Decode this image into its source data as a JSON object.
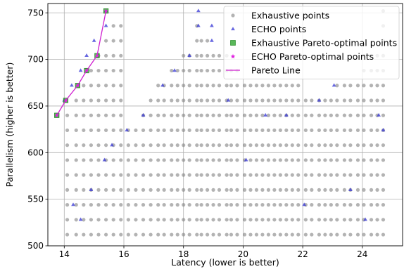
{
  "chart_data": {
    "type": "scatter",
    "xlabel": "Latency (lower is better)",
    "ylabel": "Parallelism (higher is better)",
    "xlim": [
      13.45,
      25.35
    ],
    "ylim": [
      500,
      760
    ],
    "x_ticks": [
      14,
      16,
      18,
      20,
      22,
      24
    ],
    "y_ticks": [
      500,
      550,
      600,
      650,
      700,
      750
    ],
    "grid": true,
    "legend_position": "top-right",
    "parallelism_levels": [
      512,
      528,
      544,
      560,
      576,
      592,
      608,
      624,
      640,
      656,
      672,
      688,
      704,
      720,
      736,
      752
    ],
    "exhaustive_x_columns": [
      14.1,
      14.4,
      14.65,
      14.9,
      15.15,
      15.4,
      15.65,
      15.9,
      16.15,
      16.4,
      16.65,
      16.9,
      17.15,
      17.35,
      17.6,
      17.8,
      18.0,
      18.2,
      18.45,
      18.6,
      18.8,
      19.0,
      19.2,
      19.45,
      19.6,
      19.8,
      20.05,
      20.25,
      20.45,
      20.65,
      20.85,
      21.05,
      21.25,
      21.45,
      21.65,
      21.85,
      22.1,
      22.3,
      22.55,
      22.75,
      22.95,
      23.15,
      23.4,
      23.6,
      23.85,
      24.05,
      24.3,
      24.5,
      24.7
    ],
    "echo_x_columns": [
      14.3,
      14.9,
      15.35,
      15.6,
      16.1,
      16.65,
      17.3,
      17.7,
      18.2,
      18.5,
      18.95,
      19.5,
      20.1,
      20.75,
      21.45,
      22.05,
      22.55,
      23.05,
      23.6,
      24.1,
      24.55,
      24.7
    ],
    "series": [
      {
        "name": "Exhaustive points",
        "color": "#808080",
        "marker": "circle",
        "points": [],
        "upper_envelope": [
          [
            14.1,
            640
          ],
          [
            14.4,
            656
          ],
          [
            14.65,
            672
          ],
          [
            14.9,
            688
          ],
          [
            15.15,
            704
          ],
          [
            15.4,
            720
          ],
          [
            15.65,
            736
          ],
          [
            15.9,
            736
          ],
          [
            16.15,
            624
          ],
          [
            16.4,
            624
          ],
          [
            16.65,
            640
          ],
          [
            16.9,
            656
          ],
          [
            17.15,
            672
          ],
          [
            17.35,
            672
          ],
          [
            17.6,
            688
          ],
          [
            17.8,
            688
          ],
          [
            18.0,
            704
          ],
          [
            18.2,
            704
          ],
          [
            18.45,
            736
          ],
          [
            18.6,
            720
          ],
          [
            18.8,
            720
          ],
          [
            19.0,
            704
          ],
          [
            19.2,
            704
          ],
          [
            19.45,
            704
          ],
          [
            19.6,
            688
          ],
          [
            19.8,
            688
          ],
          [
            20.05,
            672
          ],
          [
            20.25,
            672
          ],
          [
            20.45,
            672
          ],
          [
            20.65,
            672
          ],
          [
            20.85,
            672
          ],
          [
            21.05,
            672
          ],
          [
            21.25,
            672
          ],
          [
            21.45,
            688
          ],
          [
            21.65,
            688
          ],
          [
            21.85,
            688
          ],
          [
            22.1,
            656
          ],
          [
            22.3,
            656
          ],
          [
            22.55,
            656
          ],
          [
            22.75,
            656
          ],
          [
            22.95,
            656
          ],
          [
            23.15,
            672
          ],
          [
            23.4,
            672
          ],
          [
            23.6,
            672
          ],
          [
            23.85,
            672
          ],
          [
            24.05,
            704
          ],
          [
            24.3,
            704
          ],
          [
            24.5,
            704
          ],
          [
            24.7,
            752
          ]
        ]
      },
      {
        "name": "ECHO points",
        "color": "#3535d6",
        "marker": "triangle",
        "points": [
          [
            13.75,
            640
          ],
          [
            14.0,
            656
          ],
          [
            14.25,
            672
          ],
          [
            14.55,
            688
          ],
          [
            14.75,
            704
          ],
          [
            15.0,
            720
          ],
          [
            15.4,
            752
          ],
          [
            15.4,
            736
          ],
          [
            14.3,
            544
          ],
          [
            14.55,
            528
          ],
          [
            14.9,
            560
          ],
          [
            15.35,
            592
          ],
          [
            15.6,
            608
          ],
          [
            16.1,
            624
          ],
          [
            16.65,
            640
          ],
          [
            17.3,
            672
          ],
          [
            17.7,
            688
          ],
          [
            18.2,
            704
          ],
          [
            18.5,
            752
          ],
          [
            18.5,
            736
          ],
          [
            18.95,
            736
          ],
          [
            18.95,
            720
          ],
          [
            19.5,
            656
          ],
          [
            20.1,
            592
          ],
          [
            20.75,
            640
          ],
          [
            21.45,
            640
          ],
          [
            22.05,
            544
          ],
          [
            22.55,
            656
          ],
          [
            23.05,
            672
          ],
          [
            23.6,
            560
          ],
          [
            24.1,
            528
          ],
          [
            24.55,
            640
          ],
          [
            24.7,
            624
          ]
        ]
      },
      {
        "name": "Exhaustive Pareto-optimal points",
        "color": "#22a022",
        "marker": "square",
        "points": [
          [
            13.75,
            640
          ],
          [
            14.05,
            656
          ],
          [
            14.45,
            672
          ],
          [
            14.75,
            688
          ],
          [
            15.1,
            704
          ],
          [
            15.4,
            752
          ]
        ]
      },
      {
        "name": "ECHO Pareto-optimal points",
        "color": "#e020e0",
        "marker": "star",
        "points": [
          [
            13.75,
            640
          ],
          [
            14.05,
            656
          ],
          [
            14.45,
            672
          ],
          [
            14.75,
            688
          ],
          [
            15.1,
            704
          ],
          [
            15.4,
            752
          ]
        ]
      },
      {
        "name": "Pareto Line",
        "color": "#d020d0",
        "marker": "line",
        "points": [
          [
            13.75,
            640
          ],
          [
            14.05,
            656
          ],
          [
            14.45,
            672
          ],
          [
            14.75,
            688
          ],
          [
            15.1,
            704
          ],
          [
            15.4,
            752
          ]
        ]
      }
    ]
  }
}
